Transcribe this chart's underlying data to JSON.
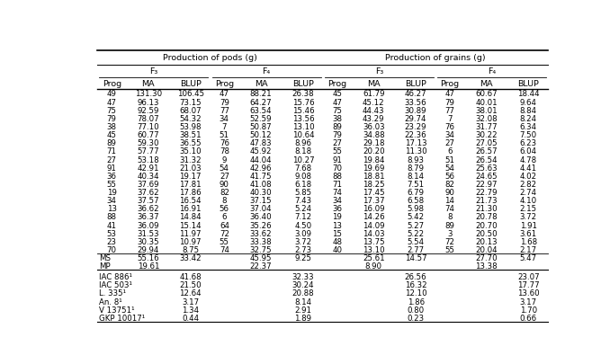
{
  "title_pods": "Production of pods (g)",
  "title_grains": "Production of grains (g)",
  "data_rows": [
    [
      "49",
      "131.30",
      "106.45",
      "47",
      "88.21",
      "26.38",
      "45",
      "61.79",
      "46.27",
      "47",
      "60.67",
      "18.44"
    ],
    [
      "47",
      "96.13",
      "73.15",
      "79",
      "64.27",
      "15.76",
      "47",
      "45.12",
      "33.56",
      "79",
      "40.01",
      "9.64"
    ],
    [
      "75",
      "92.59",
      "68.07",
      "77",
      "63.54",
      "15.46",
      "75",
      "44.43",
      "30.89",
      "77",
      "38.01",
      "8.84"
    ],
    [
      "79",
      "78.07",
      "54.32",
      "34",
      "52.59",
      "13.56",
      "38",
      "43.29",
      "29.74",
      "7",
      "32.08",
      "8.24"
    ],
    [
      "38",
      "77.10",
      "53.98",
      "7",
      "50.87",
      "13.10",
      "89",
      "36.03",
      "23.29",
      "76",
      "31.77",
      "6.34"
    ],
    [
      "45",
      "60.77",
      "38.51",
      "51",
      "50.12",
      "10.64",
      "79",
      "34.88",
      "22.36",
      "34",
      "30.22",
      "7.50"
    ],
    [
      "89",
      "59.30",
      "36.55",
      "76",
      "47.83",
      "8.96",
      "27",
      "29.18",
      "17.13",
      "27",
      "27.05",
      "6.23"
    ],
    [
      "71",
      "57.77",
      "35.10",
      "78",
      "45.92",
      "8.18",
      "55",
      "20.20",
      "11.30",
      "6",
      "26.57",
      "6.04"
    ],
    [
      "27",
      "53.18",
      "31.32",
      "9",
      "44.04",
      "10.27",
      "91",
      "19.84",
      "8.93",
      "51",
      "26.54",
      "4.78"
    ],
    [
      "91",
      "42.91",
      "21.03",
      "54",
      "42.96",
      "7.68",
      "70",
      "19.69",
      "8.79",
      "54",
      "25.63",
      "4.41"
    ],
    [
      "36",
      "40.34",
      "19.17",
      "27",
      "41.75",
      "9.08",
      "88",
      "18.81",
      "8.14",
      "56",
      "24.65",
      "4.02"
    ],
    [
      "55",
      "37.69",
      "17.81",
      "90",
      "41.08",
      "6.18",
      "71",
      "18.25",
      "7.51",
      "82",
      "22.97",
      "2.82"
    ],
    [
      "19",
      "37.62",
      "17.86",
      "82",
      "40.30",
      "5.85",
      "74",
      "17.45",
      "6.79",
      "90",
      "22.79",
      "2.74"
    ],
    [
      "34",
      "37.57",
      "16.54",
      "8",
      "37.15",
      "7.43",
      "34",
      "17.37",
      "6.58",
      "14",
      "21.73",
      "4.10"
    ],
    [
      "13",
      "36.62",
      "16.91",
      "56",
      "37.04",
      "5.24",
      "36",
      "16.09",
      "5.98",
      "74",
      "21.30",
      "2.15"
    ],
    [
      "88",
      "36.37",
      "14.84",
      "6",
      "36.40",
      "7.12",
      "19",
      "14.26",
      "5.42",
      "8",
      "20.78",
      "3.72"
    ],
    [
      "41",
      "36.09",
      "15.14",
      "64",
      "35.26",
      "4.50",
      "13",
      "14.09",
      "5.27",
      "89",
      "20.70",
      "1.91"
    ],
    [
      "53",
      "31.53",
      "11.97",
      "72",
      "33.62",
      "3.09",
      "15",
      "14.03",
      "5.22",
      "3",
      "20.50",
      "3.61"
    ],
    [
      "23",
      "30.35",
      "10.97",
      "55",
      "33.38",
      "3.72",
      "48",
      "13.75",
      "5.54",
      "72",
      "20.13",
      "1.68"
    ],
    [
      "70",
      "29.94",
      "8.75",
      "74",
      "32.75",
      "2.73",
      "40",
      "13.10",
      "2.77",
      "55",
      "20.04",
      "2.17"
    ]
  ],
  "summary_rows": [
    [
      "MS",
      "55.16",
      "33.42",
      "",
      "45.95",
      "9.25",
      "",
      "25.61",
      "14.57",
      "",
      "27.70",
      "5.47"
    ],
    [
      "MP",
      "19.61",
      "",
      "",
      "22.37",
      "",
      "",
      "8.90",
      "",
      "",
      "13.38",
      ""
    ]
  ],
  "control_rows": [
    [
      "IAC 886¹",
      "41.68",
      "32.33",
      "26.56",
      "23.07"
    ],
    [
      "IAC 503¹",
      "21.50",
      "30.24",
      "16.32",
      "17.77"
    ],
    [
      "L. 335¹",
      "12.64",
      "20.88",
      "12.10",
      "13.60"
    ],
    [
      "An. 8¹",
      "3.17",
      "8.14",
      "1.86",
      "3.17"
    ],
    [
      "V 13751¹",
      "1.34",
      "2.91",
      "0.80",
      "1.70"
    ],
    [
      "GKP 10017¹",
      "0.44",
      "1.89",
      "0.23",
      "0.66"
    ]
  ],
  "background_color": "#ffffff",
  "text_color": "#000000",
  "font_size": 6.2,
  "header_font_size": 6.8
}
